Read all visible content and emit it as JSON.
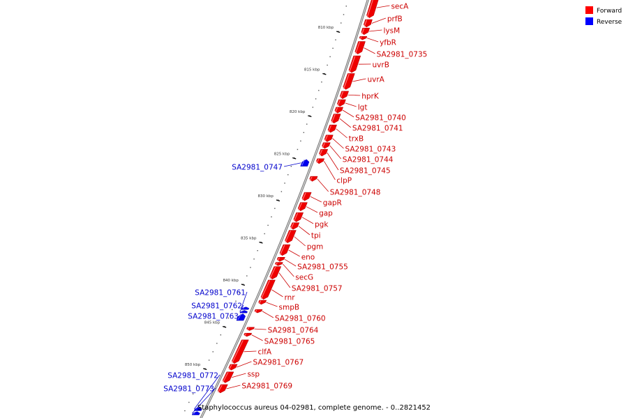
{
  "caption": "Staphylococcus aureus 04-02981, complete genome. - 0..2821452",
  "legend": [
    {
      "label": "Forward",
      "color": "#ff0000"
    },
    {
      "label": "Reverse",
      "color": "#0000ff"
    }
  ],
  "colors": {
    "forward": "#ee0000",
    "reverse": "#0000ee",
    "forward_label": "#cc0000",
    "reverse_label": "#0000cc",
    "backbone": "#888888"
  },
  "ticks": [
    {
      "kbp": 810,
      "label": "810 kbp"
    },
    {
      "kbp": 815,
      "label": "815 kbp"
    },
    {
      "kbp": 820,
      "label": "820 kbp"
    },
    {
      "kbp": 825,
      "label": "825 kbp"
    },
    {
      "kbp": 830,
      "label": "830 kbp"
    },
    {
      "kbp": 835,
      "label": "835 kbp"
    },
    {
      "kbp": 840,
      "label": "840 kbp"
    },
    {
      "kbp": 845,
      "label": "845 kbp"
    },
    {
      "kbp": 850,
      "label": "850 kbp"
    }
  ],
  "genes": [
    {
      "name": "secA",
      "strand": "forward",
      "start_kbp": 806.0,
      "end_kbp": 808.4
    },
    {
      "name": "prfB",
      "strand": "forward",
      "start_kbp": 808.6,
      "end_kbp": 809.5
    },
    {
      "name": "lysM",
      "strand": "forward",
      "start_kbp": 809.6,
      "end_kbp": 810.4
    },
    {
      "name": "yfbR",
      "strand": "forward",
      "start_kbp": 810.6,
      "end_kbp": 811.0
    },
    {
      "name": "SA2981_0735",
      "strand": "forward",
      "start_kbp": 811.2,
      "end_kbp": 812.7
    },
    {
      "name": "uvrB",
      "strand": "forward",
      "start_kbp": 812.9,
      "end_kbp": 814.9
    },
    {
      "name": "uvrA",
      "strand": "forward",
      "start_kbp": 815.0,
      "end_kbp": 816.9
    },
    {
      "name": "hprK",
      "strand": "forward",
      "start_kbp": 817.1,
      "end_kbp": 818.0
    },
    {
      "name": "lgt",
      "strand": "forward",
      "start_kbp": 818.1,
      "end_kbp": 818.9
    },
    {
      "name": "SA2981_0740",
      "strand": "forward",
      "start_kbp": 819.0,
      "end_kbp": 819.7
    },
    {
      "name": "SA2981_0741",
      "strand": "forward",
      "start_kbp": 819.8,
      "end_kbp": 820.9
    },
    {
      "name": "trxB",
      "strand": "forward",
      "start_kbp": 821.1,
      "end_kbp": 822.0
    },
    {
      "name": "SA2981_0743",
      "strand": "forward",
      "start_kbp": 822.3,
      "end_kbp": 823.1
    },
    {
      "name": "SA2981_0744",
      "strand": "forward",
      "start_kbp": 823.2,
      "end_kbp": 823.9
    },
    {
      "name": "SA2981_0745",
      "strand": "forward",
      "start_kbp": 824.0,
      "end_kbp": 824.8
    },
    {
      "name": "SA2981_0747",
      "strand": "reverse",
      "start_kbp": 825.2,
      "end_kbp": 826.0
    },
    {
      "name": "clpP",
      "strand": "forward",
      "start_kbp": 825.1,
      "end_kbp": 825.7
    },
    {
      "name": "SA2981_0748",
      "strand": "forward",
      "start_kbp": 827.2,
      "end_kbp": 827.8
    },
    {
      "name": "gapR",
      "strand": "forward",
      "start_kbp": 829.1,
      "end_kbp": 830.1
    },
    {
      "name": "gap",
      "strand": "forward",
      "start_kbp": 830.3,
      "end_kbp": 831.3
    },
    {
      "name": "pgk",
      "strand": "forward",
      "start_kbp": 831.5,
      "end_kbp": 832.6
    },
    {
      "name": "tpi",
      "strand": "forward",
      "start_kbp": 832.7,
      "end_kbp": 833.5
    },
    {
      "name": "pgm",
      "strand": "forward",
      "start_kbp": 833.6,
      "end_kbp": 835.1
    },
    {
      "name": "eno",
      "strand": "forward",
      "start_kbp": 835.3,
      "end_kbp": 836.6
    },
    {
      "name": "SA2981_0755",
      "strand": "forward",
      "start_kbp": 836.8,
      "end_kbp": 837.3
    },
    {
      "name": "secG",
      "strand": "forward",
      "start_kbp": 837.4,
      "end_kbp": 837.8
    },
    {
      "name": "SA2981_0757",
      "strand": "forward",
      "start_kbp": 837.9,
      "end_kbp": 839.4
    },
    {
      "name": "rnr",
      "strand": "forward",
      "start_kbp": 839.5,
      "end_kbp": 841.8
    },
    {
      "name": "smpB",
      "strand": "forward",
      "start_kbp": 841.9,
      "end_kbp": 842.4
    },
    {
      "name": "SA2981_0761",
      "strand": "reverse",
      "start_kbp": 842.7,
      "end_kbp": 843.0
    },
    {
      "name": "SA2981_0762",
      "strand": "reverse",
      "start_kbp": 843.1,
      "end_kbp": 843.4
    },
    {
      "name": "SA2981_0763",
      "strand": "reverse",
      "start_kbp": 843.5,
      "end_kbp": 844.3
    },
    {
      "name": "SA2981_0760",
      "strand": "forward",
      "start_kbp": 843.0,
      "end_kbp": 843.4
    },
    {
      "name": "SA2981_0764",
      "strand": "forward",
      "start_kbp": 845.1,
      "end_kbp": 845.5
    },
    {
      "name": "SA2981_0765",
      "strand": "forward",
      "start_kbp": 845.8,
      "end_kbp": 846.2
    },
    {
      "name": "clfA",
      "strand": "forward",
      "start_kbp": 846.6,
      "end_kbp": 849.4
    },
    {
      "name": "SA2981_0767",
      "strand": "forward",
      "start_kbp": 849.5,
      "end_kbp": 850.2
    },
    {
      "name": "ssp",
      "strand": "forward",
      "start_kbp": 850.4,
      "end_kbp": 851.7
    },
    {
      "name": "SA2981_0769",
      "strand": "forward",
      "start_kbp": 851.9,
      "end_kbp": 852.9
    },
    {
      "name": "SA2981_0772",
      "strand": "reverse",
      "start_kbp": 854.6,
      "end_kbp": 855.0
    },
    {
      "name": "SA2981_0773",
      "strand": "reverse",
      "start_kbp": 855.1,
      "end_kbp": 855.5
    }
  ]
}
